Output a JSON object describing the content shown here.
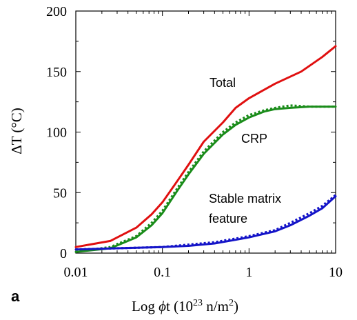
{
  "chart_data": {
    "type": "line",
    "xscale": "log",
    "xlim": [
      0.01,
      10
    ],
    "ylim": [
      0,
      200
    ],
    "xticks": [
      0.01,
      0.1,
      1,
      10
    ],
    "xtick_labels": [
      "0.01",
      "0.1",
      "1",
      "10"
    ],
    "yticks": [
      0,
      50,
      100,
      150,
      200
    ],
    "ytick_labels": [
      "0",
      "50",
      "100",
      "150",
      "200"
    ],
    "xlabel": {
      "prefix": "Log ",
      "phi": "ϕ",
      "mid": "t (10",
      "exp": "23",
      "post": " n/m",
      "exp2": "2",
      "close": ")"
    },
    "ylabel": "ΔT (°C)",
    "panel_label": "a",
    "grid": false,
    "annotations": {
      "total": "Total",
      "crp": "CRP",
      "smf_line1": "Stable matrix",
      "smf_line2": "feature"
    },
    "series": [
      {
        "key": "total",
        "color": "#e01010",
        "style": "solid",
        "x": [
          0.01,
          0.025,
          0.05,
          0.075,
          0.1,
          0.15,
          0.2,
          0.3,
          0.5,
          0.7,
          1,
          2,
          4,
          7,
          10
        ],
        "y": [
          5,
          10,
          21,
          32,
          42,
          60,
          73,
          92,
          108,
          120,
          128,
          140,
          150,
          162,
          171
        ]
      },
      {
        "key": "crp_fit",
        "color": "#1a8c1a",
        "style": "solid",
        "x": [
          0.01,
          0.025,
          0.05,
          0.075,
          0.1,
          0.15,
          0.2,
          0.3,
          0.5,
          0.7,
          1,
          1.5,
          2,
          3,
          5,
          7,
          10
        ],
        "y": [
          1,
          4,
          13,
          23,
          33,
          52,
          65,
          82,
          98,
          106,
          112,
          117,
          119,
          120,
          121,
          121,
          121
        ]
      },
      {
        "key": "crp_data",
        "color": "#1a8c1a",
        "style": "dotted",
        "x": [
          0.01,
          0.025,
          0.05,
          0.075,
          0.1,
          0.15,
          0.2,
          0.3,
          0.5,
          0.7,
          1,
          1.5,
          2,
          3,
          5,
          7,
          10
        ],
        "y": [
          1,
          5,
          14,
          25,
          35,
          54,
          67,
          84,
          100,
          108,
          114,
          118,
          120,
          122,
          121,
          121,
          121
        ]
      },
      {
        "key": "smf_fit",
        "color": "#1414c8",
        "style": "solid",
        "x": [
          0.01,
          0.03,
          0.1,
          0.2,
          0.4,
          0.7,
          1,
          2,
          3,
          5,
          7,
          10
        ],
        "y": [
          3,
          4,
          5,
          6,
          8,
          11,
          13,
          18,
          23,
          31,
          37,
          47
        ]
      },
      {
        "key": "smf_data",
        "color": "#1414c8",
        "style": "dotted",
        "x": [
          0.01,
          0.03,
          0.1,
          0.2,
          0.4,
          0.7,
          1,
          2,
          3,
          5,
          7,
          10
        ],
        "y": [
          3,
          4,
          5,
          7,
          9,
          12,
          14,
          19,
          25,
          33,
          39,
          48
        ]
      }
    ]
  }
}
